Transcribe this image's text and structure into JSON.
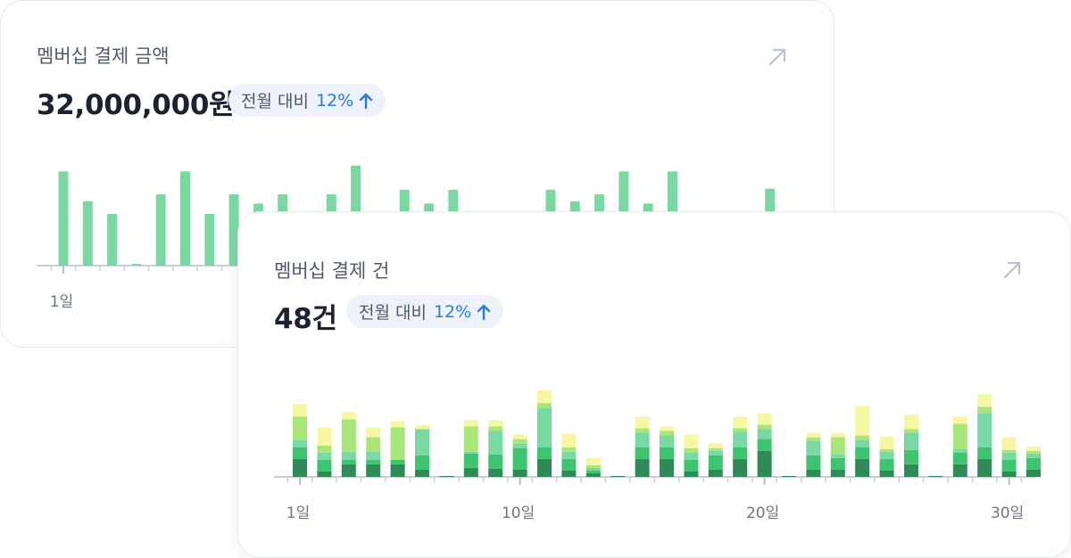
{
  "cards": [
    {
      "title": "멤버십 결제 금액",
      "value": "32,000,000원",
      "badge": {
        "label": "전월 대비",
        "change": "12%"
      }
    },
    {
      "title": "멤버십 결제 건",
      "value": "48건",
      "badge": {
        "label": "전월 대비",
        "change": "12%"
      }
    }
  ],
  "icons": {
    "expand": "expand-arrow-icon",
    "trend_up": "arrow-up-icon"
  },
  "colors": {
    "accent_blue": "#2a7be4",
    "bar_green": "#7ad9a3",
    "stack": [
      "#2e8b57",
      "#3cc46f",
      "#7ad9a3",
      "#a9e67a",
      "#f6f7a3"
    ]
  },
  "chart_data": [
    {
      "type": "bar",
      "x": [
        1,
        2,
        3,
        4,
        5,
        6,
        7,
        8,
        9,
        10,
        11,
        12,
        13,
        14,
        15,
        16,
        17,
        18,
        19,
        20,
        21,
        22,
        23,
        24,
        25,
        26,
        27,
        28,
        29,
        30,
        31
      ],
      "values": [
        8.2,
        5.6,
        4.5,
        0.1,
        6.2,
        8.2,
        4.5,
        6.2,
        5.4,
        6.2,
        0,
        6.2,
        8.7,
        0,
        6.6,
        5.4,
        6.6,
        0,
        0,
        0.4,
        6.6,
        5.6,
        6.2,
        8.2,
        5.4,
        8.2,
        0,
        0,
        0,
        6.7,
        0
      ],
      "x_tick_labels": [
        "1일"
      ],
      "xlabel": "",
      "ylabel": ""
    },
    {
      "type": "bar",
      "stacked": true,
      "x": [
        1,
        2,
        3,
        4,
        5,
        6,
        7,
        8,
        9,
        10,
        11,
        12,
        13,
        14,
        15,
        16,
        17,
        18,
        19,
        20,
        21,
        22,
        23,
        24,
        25,
        26,
        27,
        28,
        29,
        30,
        31
      ],
      "x_tick_labels": [
        "1일",
        "10일",
        "20일",
        "30일"
      ],
      "series": [
        {
          "values": [
            2.0,
            0.6,
            1.4,
            1.4,
            1.4,
            0.8,
            0.1,
            1.0,
            0.9,
            0.8,
            2.0,
            0.7,
            0.4,
            0.1,
            2.0,
            2.0,
            0.6,
            0.8,
            2.0,
            2.9,
            0.1,
            0.8,
            0.8,
            2.0,
            0.7,
            1.4,
            0.1,
            1.4,
            2.0,
            0.6,
            0.8
          ]
        },
        {
          "values": [
            1.3,
            1.3,
            0.5,
            0.5,
            0.5,
            1.6,
            0,
            1.6,
            1.6,
            2.4,
            1.3,
            1.3,
            0.3,
            0,
            1.3,
            1.3,
            1.3,
            1.6,
            1.3,
            1.3,
            0,
            1.6,
            1.3,
            1.3,
            1.3,
            1.6,
            0,
            1.3,
            1.3,
            1.3,
            1.3
          ]
        },
        {
          "values": [
            0.8,
            0.8,
            0.9,
            0.9,
            0,
            2.9,
            0,
            0.2,
            2.6,
            0.5,
            4.4,
            0.8,
            0.3,
            0,
            1.6,
            1.3,
            0.8,
            0.5,
            1.7,
            1.1,
            0,
            1.6,
            0.4,
            0.8,
            0.8,
            1.9,
            0,
            0.4,
            3.8,
            0.8,
            0.5
          ]
        },
        {
          "values": [
            2.6,
            0.8,
            3.6,
            1.6,
            3.6,
            0,
            0,
            2.8,
            0.5,
            0.5,
            0.5,
            0.5,
            0.3,
            0,
            0.5,
            0.5,
            0.5,
            0.3,
            0.4,
            0.5,
            0,
            0.4,
            1.9,
            0.5,
            0.3,
            0.4,
            0,
            2.8,
            0.7,
            0.3,
            0.3
          ]
        },
        {
          "values": [
            1.4,
            2.0,
            0.8,
            1.1,
            0.7,
            0.5,
            0,
            0.7,
            0.7,
            0.5,
            1.4,
            1.5,
            0.8,
            0,
            1.3,
            0.5,
            1.5,
            0.5,
            1.3,
            1.3,
            0,
            0.5,
            0.5,
            3.3,
            1.4,
            1.6,
            0,
            0.8,
            1.4,
            1.4,
            0.5
          ]
        }
      ],
      "xlabel": "",
      "ylabel": ""
    }
  ]
}
